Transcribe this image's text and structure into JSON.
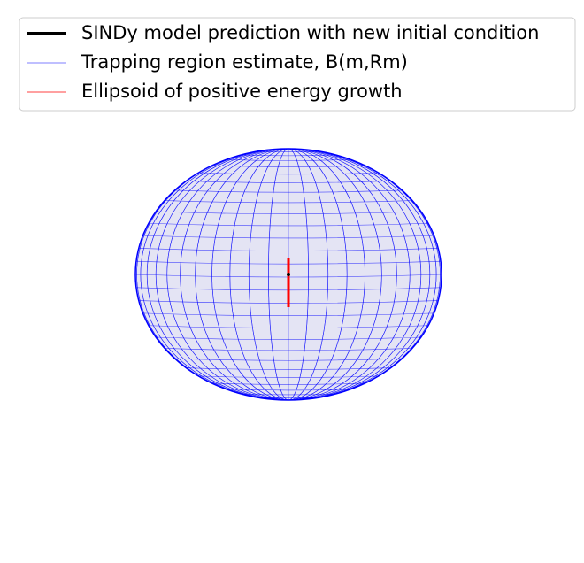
{
  "chart_data": {
    "type": "wireframe3d",
    "series": [
      {
        "name": "SINDy model prediction with new initial condition",
        "color": "#000000"
      },
      {
        "name": "Trapping region estimate, B(m,Rm)",
        "color": "#0000ff"
      },
      {
        "name": "Ellipsoid of positive energy growth",
        "color": "#ff0000"
      }
    ]
  }
}
